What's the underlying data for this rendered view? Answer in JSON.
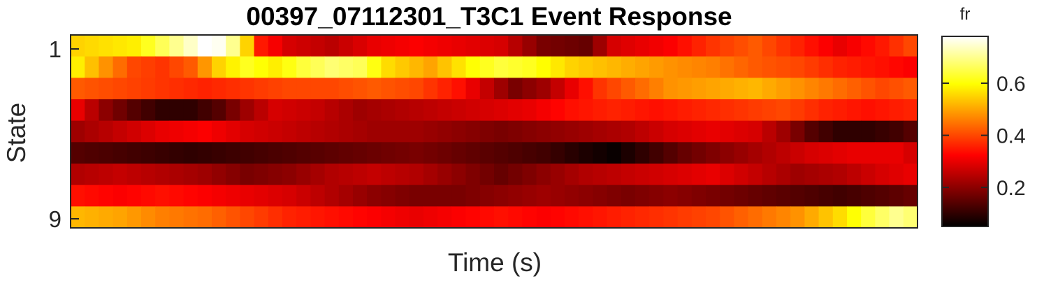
{
  "chart_data": {
    "type": "heatmap",
    "title": "00397_07112301_T3C1 Event Response",
    "xlabel": "Time (s)",
    "ylabel": "State",
    "y_tick_labels": [
      "1",
      "9"
    ],
    "colormap": "hot",
    "colorbar": {
      "label": "fr",
      "range": [
        0.05,
        0.78
      ],
      "ticks": [
        0.2,
        0.4,
        0.6
      ],
      "tick_labels": [
        "0.2",
        "0.4",
        "0.6"
      ]
    },
    "n_columns": 60,
    "rows": [
      {
        "state": 1,
        "keyframes": [
          [
            0,
            0.55
          ],
          [
            4,
            0.58
          ],
          [
            6,
            0.66
          ],
          [
            8,
            0.74
          ],
          [
            9,
            0.78
          ],
          [
            10,
            0.77
          ],
          [
            11,
            0.7
          ],
          [
            12,
            0.55
          ],
          [
            13,
            0.35
          ],
          [
            15,
            0.28
          ],
          [
            18,
            0.25
          ],
          [
            21,
            0.3
          ],
          [
            24,
            0.32
          ],
          [
            27,
            0.3
          ],
          [
            30,
            0.28
          ],
          [
            33,
            0.18
          ],
          [
            36,
            0.16
          ],
          [
            38,
            0.28
          ],
          [
            42,
            0.32
          ],
          [
            45,
            0.38
          ],
          [
            48,
            0.42
          ],
          [
            51,
            0.36
          ],
          [
            54,
            0.3
          ],
          [
            57,
            0.35
          ],
          [
            59,
            0.4
          ]
        ]
      },
      {
        "state": 2,
        "keyframes": [
          [
            0,
            0.58
          ],
          [
            2,
            0.48
          ],
          [
            4,
            0.4
          ],
          [
            6,
            0.38
          ],
          [
            8,
            0.42
          ],
          [
            10,
            0.55
          ],
          [
            12,
            0.62
          ],
          [
            14,
            0.58
          ],
          [
            16,
            0.64
          ],
          [
            18,
            0.68
          ],
          [
            20,
            0.66
          ],
          [
            22,
            0.56
          ],
          [
            25,
            0.5
          ],
          [
            28,
            0.6
          ],
          [
            30,
            0.64
          ],
          [
            32,
            0.62
          ],
          [
            35,
            0.55
          ],
          [
            38,
            0.52
          ],
          [
            42,
            0.48
          ],
          [
            45,
            0.46
          ],
          [
            48,
            0.42
          ],
          [
            51,
            0.4
          ],
          [
            54,
            0.36
          ],
          [
            57,
            0.34
          ],
          [
            59,
            0.32
          ]
        ]
      },
      {
        "state": 3,
        "keyframes": [
          [
            0,
            0.42
          ],
          [
            3,
            0.4
          ],
          [
            6,
            0.38
          ],
          [
            9,
            0.36
          ],
          [
            12,
            0.38
          ],
          [
            15,
            0.4
          ],
          [
            18,
            0.4
          ],
          [
            21,
            0.42
          ],
          [
            24,
            0.4
          ],
          [
            27,
            0.34
          ],
          [
            29,
            0.26
          ],
          [
            31,
            0.18
          ],
          [
            33,
            0.22
          ],
          [
            35,
            0.3
          ],
          [
            37,
            0.38
          ],
          [
            39,
            0.42
          ],
          [
            42,
            0.48
          ],
          [
            45,
            0.5
          ],
          [
            48,
            0.52
          ],
          [
            51,
            0.48
          ],
          [
            54,
            0.44
          ],
          [
            57,
            0.4
          ],
          [
            59,
            0.42
          ]
        ]
      },
      {
        "state": 4,
        "keyframes": [
          [
            0,
            0.3
          ],
          [
            2,
            0.2
          ],
          [
            4,
            0.14
          ],
          [
            6,
            0.1
          ],
          [
            8,
            0.1
          ],
          [
            10,
            0.14
          ],
          [
            12,
            0.22
          ],
          [
            14,
            0.28
          ],
          [
            17,
            0.26
          ],
          [
            20,
            0.22
          ],
          [
            23,
            0.24
          ],
          [
            26,
            0.26
          ],
          [
            29,
            0.28
          ],
          [
            32,
            0.3
          ],
          [
            35,
            0.34
          ],
          [
            38,
            0.36
          ],
          [
            41,
            0.34
          ],
          [
            44,
            0.36
          ],
          [
            47,
            0.38
          ],
          [
            50,
            0.4
          ],
          [
            53,
            0.36
          ],
          [
            56,
            0.34
          ],
          [
            59,
            0.36
          ]
        ]
      },
      {
        "state": 5,
        "keyframes": [
          [
            0,
            0.22
          ],
          [
            3,
            0.26
          ],
          [
            6,
            0.3
          ],
          [
            9,
            0.32
          ],
          [
            12,
            0.28
          ],
          [
            15,
            0.26
          ],
          [
            18,
            0.24
          ],
          [
            21,
            0.22
          ],
          [
            24,
            0.22
          ],
          [
            27,
            0.2
          ],
          [
            30,
            0.18
          ],
          [
            33,
            0.2
          ],
          [
            36,
            0.22
          ],
          [
            39,
            0.24
          ],
          [
            42,
            0.28
          ],
          [
            45,
            0.3
          ],
          [
            48,
            0.28
          ],
          [
            50,
            0.22
          ],
          [
            52,
            0.14
          ],
          [
            54,
            0.1
          ],
          [
            56,
            0.1
          ],
          [
            58,
            0.12
          ],
          [
            59,
            0.14
          ]
        ]
      },
      {
        "state": 6,
        "keyframes": [
          [
            0,
            0.14
          ],
          [
            4,
            0.12
          ],
          [
            8,
            0.1
          ],
          [
            12,
            0.12
          ],
          [
            16,
            0.14
          ],
          [
            20,
            0.16
          ],
          [
            24,
            0.18
          ],
          [
            27,
            0.16
          ],
          [
            30,
            0.14
          ],
          [
            33,
            0.12
          ],
          [
            36,
            0.08
          ],
          [
            38,
            0.06
          ],
          [
            40,
            0.1
          ],
          [
            43,
            0.16
          ],
          [
            46,
            0.2
          ],
          [
            49,
            0.24
          ],
          [
            52,
            0.28
          ],
          [
            55,
            0.3
          ],
          [
            58,
            0.3
          ],
          [
            59,
            0.28
          ]
        ]
      },
      {
        "state": 7,
        "keyframes": [
          [
            0,
            0.24
          ],
          [
            3,
            0.26
          ],
          [
            6,
            0.24
          ],
          [
            9,
            0.22
          ],
          [
            12,
            0.18
          ],
          [
            15,
            0.2
          ],
          [
            18,
            0.24
          ],
          [
            21,
            0.26
          ],
          [
            24,
            0.24
          ],
          [
            27,
            0.2
          ],
          [
            30,
            0.16
          ],
          [
            33,
            0.2
          ],
          [
            36,
            0.24
          ],
          [
            39,
            0.26
          ],
          [
            42,
            0.28
          ],
          [
            45,
            0.3
          ],
          [
            48,
            0.26
          ],
          [
            51,
            0.22
          ],
          [
            54,
            0.24
          ],
          [
            57,
            0.28
          ],
          [
            59,
            0.3
          ]
        ]
      },
      {
        "state": 8,
        "keyframes": [
          [
            0,
            0.34
          ],
          [
            3,
            0.32
          ],
          [
            6,
            0.34
          ],
          [
            9,
            0.32
          ],
          [
            12,
            0.3
          ],
          [
            15,
            0.28
          ],
          [
            18,
            0.24
          ],
          [
            21,
            0.2
          ],
          [
            24,
            0.18
          ],
          [
            27,
            0.18
          ],
          [
            30,
            0.2
          ],
          [
            33,
            0.22
          ],
          [
            36,
            0.2
          ],
          [
            39,
            0.18
          ],
          [
            42,
            0.2
          ],
          [
            45,
            0.18
          ],
          [
            48,
            0.16
          ],
          [
            51,
            0.14
          ],
          [
            54,
            0.12
          ],
          [
            57,
            0.14
          ],
          [
            59,
            0.16
          ]
        ]
      },
      {
        "state": 9,
        "keyframes": [
          [
            0,
            0.52
          ],
          [
            3,
            0.5
          ],
          [
            6,
            0.46
          ],
          [
            9,
            0.44
          ],
          [
            12,
            0.4
          ],
          [
            15,
            0.36
          ],
          [
            18,
            0.34
          ],
          [
            21,
            0.32
          ],
          [
            24,
            0.3
          ],
          [
            27,
            0.32
          ],
          [
            30,
            0.34
          ],
          [
            33,
            0.32
          ],
          [
            36,
            0.34
          ],
          [
            39,
            0.36
          ],
          [
            42,
            0.38
          ],
          [
            45,
            0.4
          ],
          [
            48,
            0.44
          ],
          [
            51,
            0.48
          ],
          [
            54,
            0.56
          ],
          [
            56,
            0.64
          ],
          [
            58,
            0.7
          ],
          [
            59,
            0.68
          ]
        ]
      }
    ]
  }
}
